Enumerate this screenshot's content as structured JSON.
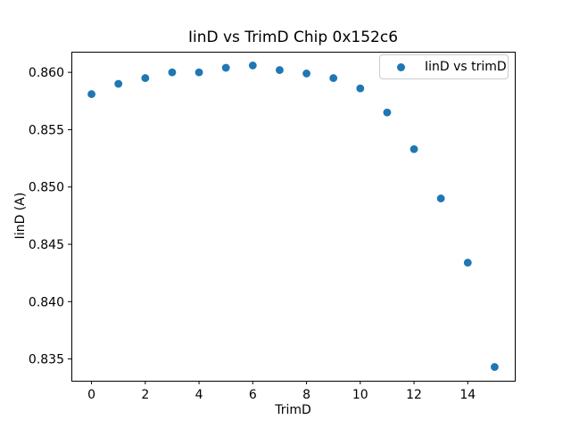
{
  "chart_data": {
    "type": "scatter",
    "title": "IinD vs TrimD Chip 0x152c6",
    "xlabel": "TrimD",
    "ylabel": "IinD (A)",
    "legend": [
      "IinD vs trimD"
    ],
    "legend_position": "upper right",
    "marker_color": "#1f77b4",
    "grid": false,
    "x": [
      0,
      1,
      2,
      3,
      4,
      5,
      6,
      7,
      8,
      9,
      10,
      11,
      12,
      13,
      14,
      15
    ],
    "y": [
      0.8581,
      0.859,
      0.8595,
      0.86,
      0.86,
      0.8604,
      0.8606,
      0.8602,
      0.8599,
      0.8595,
      0.8586,
      0.8565,
      0.8533,
      0.849,
      0.8434,
      0.8343
    ],
    "xlim": [
      -0.75,
      15.75
    ],
    "ylim": [
      0.8331,
      0.8618
    ],
    "xticks": [
      0,
      2,
      4,
      6,
      8,
      10,
      12,
      14
    ],
    "yticks": [
      0.835,
      0.84,
      0.845,
      0.85,
      0.855,
      0.86
    ],
    "ytick_decimals": 3
  }
}
